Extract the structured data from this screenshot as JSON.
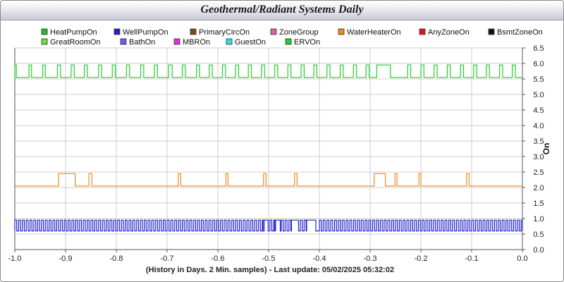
{
  "title": "Geothermal/Radiant Systems Daily",
  "footer": "(History in Days. 2 Min. samples) - Last update: 05/02/2025 05:32:02",
  "chart_data": {
    "type": "line",
    "ylabel": "On",
    "xlim": [
      -1.0,
      0.0
    ],
    "ylim": [
      0.0,
      6.5
    ],
    "x_ticks": [
      "-1.0",
      "-0.9",
      "-0.8",
      "-0.7",
      "-0.6",
      "-0.5",
      "-0.4",
      "-0.3",
      "-0.2",
      "-0.1",
      "0.0"
    ],
    "y_ticks": [
      "0.0",
      "0.5",
      "1.0",
      "1.5",
      "2.0",
      "2.5",
      "3.0",
      "3.5",
      "4.0",
      "4.5",
      "5.0",
      "5.5",
      "6.0",
      "6.5"
    ],
    "grid": true,
    "legend_position": "top",
    "legend": [
      {
        "name": "HeatPumpOn",
        "color": "#22bb22"
      },
      {
        "name": "WellPumpOn",
        "color": "#2222cc"
      },
      {
        "name": "PrimaryCircOn",
        "color": "#7a4a1a"
      },
      {
        "name": "ZoneGroup",
        "color": "#e060a0"
      },
      {
        "name": "WaterHeaterOn",
        "color": "#f08a1a"
      },
      {
        "name": "AnyZoneOn",
        "color": "#e01818"
      },
      {
        "name": "BsmtZoneOn",
        "color": "#111111"
      },
      {
        "name": "GreatRoomOn",
        "color": "#66dd44"
      },
      {
        "name": "BathOn",
        "color": "#7755ee"
      },
      {
        "name": "MBROn",
        "color": "#dd33dd"
      },
      {
        "name": "GuestOn",
        "color": "#33dddd"
      },
      {
        "name": "ERVOn",
        "color": "#22cc33"
      }
    ],
    "series": [
      {
        "name": "ERVOn",
        "color": "#22cc33",
        "baseline": 5.55,
        "on_value": 5.95,
        "on_intervals": [
          [
            -1.0,
            -0.997
          ],
          [
            -0.972,
            -0.967
          ],
          [
            -0.945,
            -0.94
          ],
          [
            -0.916,
            -0.91
          ],
          [
            -0.889,
            -0.883
          ],
          [
            -0.863,
            -0.857
          ],
          [
            -0.835,
            -0.829
          ],
          [
            -0.808,
            -0.802
          ],
          [
            -0.78,
            -0.774
          ],
          [
            -0.752,
            -0.746
          ],
          [
            -0.725,
            -0.719
          ],
          [
            -0.697,
            -0.69
          ],
          [
            -0.67,
            -0.664
          ],
          [
            -0.642,
            -0.636
          ],
          [
            -0.617,
            -0.611
          ],
          [
            -0.591,
            -0.585
          ],
          [
            -0.565,
            -0.559
          ],
          [
            -0.54,
            -0.534
          ],
          [
            -0.514,
            -0.508
          ],
          [
            -0.488,
            -0.482
          ],
          [
            -0.462,
            -0.456
          ],
          [
            -0.436,
            -0.43
          ],
          [
            -0.411,
            -0.405
          ],
          [
            -0.385,
            -0.379
          ],
          [
            -0.359,
            -0.353
          ],
          [
            -0.333,
            -0.327
          ],
          [
            -0.308,
            -0.302
          ],
          [
            -0.287,
            -0.26
          ],
          [
            -0.226,
            -0.22
          ],
          [
            -0.2,
            -0.194
          ],
          [
            -0.174,
            -0.168
          ],
          [
            -0.148,
            -0.142
          ],
          [
            -0.122,
            -0.116
          ],
          [
            -0.096,
            -0.09
          ],
          [
            -0.071,
            -0.065
          ],
          [
            -0.045,
            -0.039
          ],
          [
            -0.02,
            -0.014
          ]
        ]
      },
      {
        "name": "WaterHeaterOn",
        "color": "#f08a1a",
        "baseline": 2.05,
        "on_value": 2.45,
        "on_intervals": [
          [
            -0.914,
            -0.881
          ],
          [
            -0.854,
            -0.848
          ],
          [
            -0.678,
            -0.673
          ],
          [
            -0.584,
            -0.58
          ],
          [
            -0.51,
            -0.505
          ],
          [
            -0.449,
            -0.444
          ],
          [
            -0.292,
            -0.27
          ],
          [
            -0.251,
            -0.247
          ],
          [
            -0.204,
            -0.2
          ],
          [
            -0.11,
            -0.105
          ]
        ]
      },
      {
        "name": "WellPumpOn",
        "color": "#2222cc",
        "baseline": 0.6,
        "on_value": 0.95,
        "pulse_period": 0.0075,
        "gap_intervals": [
          [
            -0.511,
            -0.501
          ],
          [
            -0.488,
            -0.477
          ],
          [
            -0.455,
            -0.441
          ],
          [
            -0.425,
            -0.407
          ]
        ]
      }
    ]
  }
}
